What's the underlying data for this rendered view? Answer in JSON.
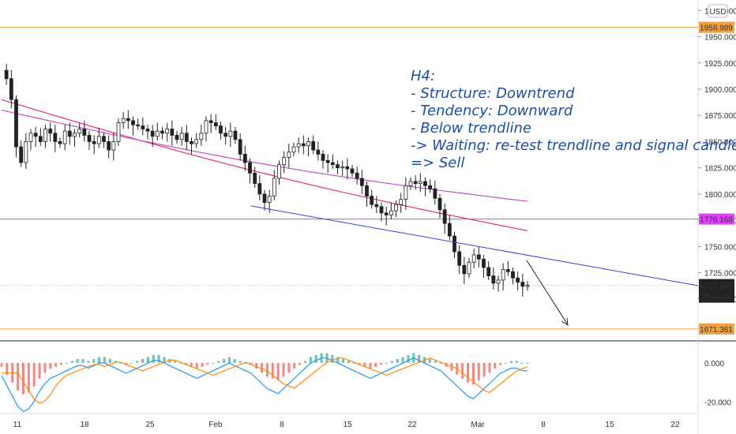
{
  "chart_data": {
    "type": "candlestick",
    "timeframe_note": "H4",
    "currency": "USD",
    "y_range": [
      1660,
      1985
    ],
    "y_ticks": [
      "1975.000",
      "1950.000",
      "1925.000",
      "1900.000",
      "1875.000",
      "1850.000",
      "1825.000",
      "1800.000",
      "1775.000",
      "1750.000",
      "1725.000",
      "1700.000"
    ],
    "x_ticks": [
      "11",
      "18",
      "25",
      "Feb",
      "8",
      "15",
      "22",
      "Mar",
      "8",
      "15",
      "22"
    ],
    "price_levels": [
      {
        "label": "1958.989",
        "value": 1958.989,
        "color": "#f2a03d"
      },
      {
        "label": "1776.168",
        "value": 1776.168,
        "color": "#e040fb"
      },
      {
        "label": "1671.361",
        "value": 1671.361,
        "color": "#f2a03d"
      }
    ],
    "current_price": {
      "label": "1712.970",
      "timer": "03:14:21",
      "value": 1712.97
    },
    "annotation_lines": [
      "H4:",
      "- Structure: Downtrend",
      "- Tendency: Downward",
      "- Below trendline",
      "-> Waiting: re-test trendline and signal candle",
      "=> Sell"
    ],
    "price_path": [
      1918,
      1910,
      1890,
      1845,
      1830,
      1850,
      1858,
      1855,
      1850,
      1862,
      1858,
      1850,
      1848,
      1860,
      1855,
      1858,
      1862,
      1856,
      1850,
      1848,
      1855,
      1850,
      1842,
      1850,
      1868,
      1872,
      1870,
      1866,
      1865,
      1862,
      1860,
      1855,
      1860,
      1858,
      1862,
      1856,
      1852,
      1858,
      1850,
      1848,
      1852,
      1858,
      1870,
      1868,
      1865,
      1858,
      1855,
      1860,
      1852,
      1838,
      1830,
      1820,
      1810,
      1800,
      1792,
      1798,
      1815,
      1828,
      1835,
      1840,
      1845,
      1848,
      1846,
      1850,
      1842,
      1838,
      1832,
      1830,
      1828,
      1825,
      1826,
      1824,
      1820,
      1815,
      1808,
      1798,
      1790,
      1788,
      1782,
      1780,
      1784,
      1790,
      1795,
      1808,
      1812,
      1810,
      1812,
      1808,
      1805,
      1796,
      1785,
      1772,
      1760,
      1745,
      1732,
      1724,
      1735,
      1742,
      1738,
      1730,
      1722,
      1715,
      1718,
      1728,
      1726,
      1720,
      1716,
      1712,
      1713
    ],
    "moving_averages": [
      {
        "color": "#e53170",
        "start_value": 1890,
        "end_value": 1765
      },
      {
        "color": "#c14fc9",
        "start_value": 1880,
        "end_value": 1793
      }
    ],
    "trendline": {
      "color": "#3b3fd9"
    },
    "oscillator": {
      "y_range": [
        -25,
        8
      ],
      "y_ticks": [
        "0.000",
        "-20.000"
      ],
      "values": [
        -2,
        -6,
        -10,
        -14,
        -16,
        -15,
        -12,
        -8,
        -5,
        -3,
        -2,
        -1,
        0,
        1,
        2,
        2,
        1,
        2,
        3,
        3,
        2,
        1,
        0,
        -1,
        0,
        1,
        2,
        3,
        4,
        4,
        3,
        2,
        1,
        0,
        -1,
        -2,
        -3,
        -2,
        -1,
        0,
        1,
        2,
        3,
        2,
        1,
        0,
        -1,
        -3,
        -5,
        -7,
        -8,
        -9,
        -7,
        -5,
        -3,
        -1,
        1,
        3,
        4,
        5,
        5,
        4,
        3,
        2,
        1,
        0,
        -1,
        -2,
        -3,
        -2,
        -1,
        0,
        1,
        2,
        3,
        4,
        5,
        4,
        3,
        2,
        1,
        0,
        -2,
        -4,
        -6,
        -8,
        -10,
        -11,
        -9,
        -7,
        -5,
        -3,
        -1,
        0,
        1,
        1,
        0,
        0
      ]
    }
  }
}
